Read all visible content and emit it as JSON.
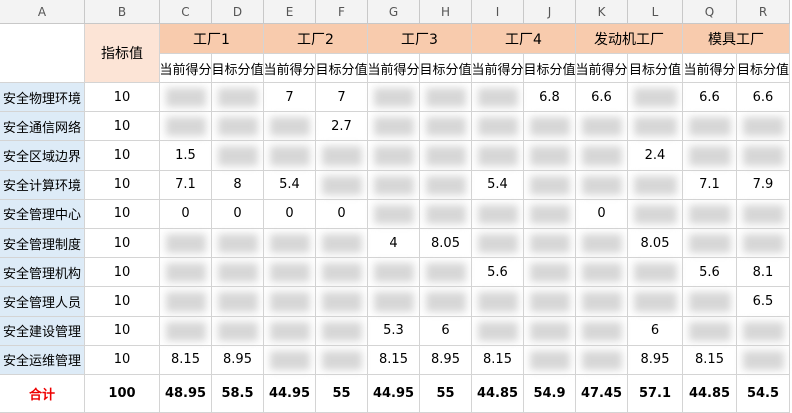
{
  "column_letters": [
    "A",
    "B",
    "C",
    "D",
    "E",
    "F",
    "G",
    "H",
    "I",
    "J",
    "K",
    "L",
    "Q",
    "R"
  ],
  "header": {
    "indicator": "指标值",
    "groups": [
      "工厂1",
      "工厂2",
      "工厂3",
      "工厂4",
      "发动机工厂",
      "模具工厂"
    ],
    "subheaders": [
      "当前得分",
      "目标分值",
      "当前得分",
      "目标分值",
      "当前得分",
      "目标分值",
      "当前得分",
      "目标分值",
      "当前得分",
      "目标分值",
      "当前得分",
      "目标分值"
    ]
  },
  "rows": [
    {
      "name": "安全物理环境",
      "values": [
        10,
        null,
        null,
        7,
        7,
        null,
        null,
        null,
        6.8,
        6.6,
        null,
        6.6,
        6.6
      ]
    },
    {
      "name": "安全通信网络",
      "values": [
        10,
        null,
        null,
        null,
        2.7,
        null,
        null,
        null,
        null,
        null,
        null,
        null,
        null
      ]
    },
    {
      "name": "安全区域边界",
      "values": [
        10,
        1.5,
        null,
        null,
        null,
        null,
        null,
        null,
        null,
        null,
        2.4,
        null,
        null
      ]
    },
    {
      "name": "安全计算环境",
      "values": [
        10,
        7.1,
        8,
        5.4,
        null,
        null,
        null,
        5.4,
        null,
        null,
        null,
        7.1,
        7.9
      ]
    },
    {
      "name": "安全管理中心",
      "values": [
        10,
        0,
        0,
        0,
        0,
        null,
        null,
        null,
        null,
        0,
        null,
        null,
        null
      ]
    },
    {
      "name": "安全管理制度",
      "values": [
        10,
        null,
        null,
        null,
        null,
        4,
        8.05,
        null,
        null,
        null,
        8.05,
        null,
        null
      ]
    },
    {
      "name": "安全管理机构",
      "values": [
        10,
        null,
        null,
        null,
        null,
        null,
        null,
        5.6,
        null,
        null,
        null,
        5.6,
        8.1
      ]
    },
    {
      "name": "安全管理人员",
      "values": [
        10,
        null,
        null,
        null,
        null,
        null,
        null,
        null,
        null,
        null,
        null,
        null,
        6.5
      ]
    },
    {
      "name": "安全建设管理",
      "values": [
        10,
        null,
        null,
        null,
        null,
        5.3,
        6,
        null,
        null,
        null,
        6,
        null,
        null
      ]
    },
    {
      "name": "安全运维管理",
      "values": [
        10,
        8.15,
        8.95,
        null,
        null,
        8.15,
        8.95,
        8.15,
        null,
        null,
        8.95,
        8.15,
        null
      ]
    }
  ],
  "total": {
    "label": "合计",
    "values": [
      100,
      48.95,
      58.5,
      44.95,
      55,
      44.95,
      55,
      44.85,
      54.9,
      47.45,
      57.1,
      44.85,
      54.5
    ]
  }
}
